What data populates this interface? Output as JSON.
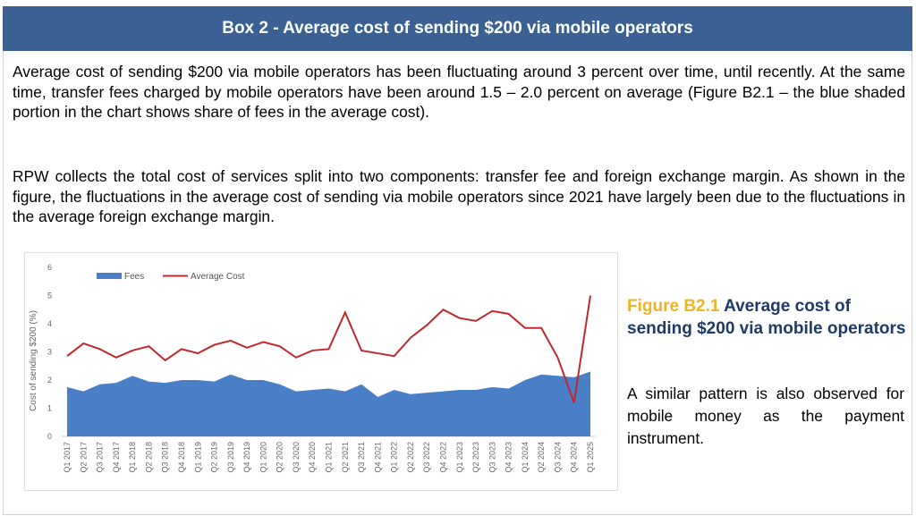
{
  "header": {
    "title": "Box 2 - Average cost of sending $200 via mobile operators"
  },
  "paragraphs": [
    "Average cost of sending $200 via mobile operators has been fluctuating around 3 percent over time, until recently. At the same time, transfer fees charged by mobile operators have been around 1.5 – 2.0 percent on average (Figure B2.1 – the blue shaded portion in the chart shows share of fees in the average cost).",
    "RPW collects the total cost of services split into two components: transfer fee and foreign exchange margin. As shown in the figure, the fluctuations in the average cost of sending via mobile operators since 2021 have largely been due to the fluctuations in the average foreign exchange margin."
  ],
  "figure": {
    "number": "Figure B2.1",
    "title": "Average cost of sending $200 via mobile operators",
    "note": "A similar pattern is also observed for mobile money as the payment instrument."
  },
  "chart_data": {
    "type": "area",
    "title": "",
    "xlabel": "",
    "ylabel": "Cost of sending $200 (%)",
    "ylim": [
      0,
      6
    ],
    "yticks": [
      "0",
      "1",
      "2",
      "3",
      "4",
      "5",
      "6"
    ],
    "grid": false,
    "legend_position": "top-left",
    "categories": [
      "Q1 2017",
      "Q2 2017",
      "Q3 2017",
      "Q4 2017",
      "Q1 2018",
      "Q2 2018",
      "Q3 2018",
      "Q4 2018",
      "Q1 2019",
      "Q2 2019",
      "Q3 2019",
      "Q4 2019",
      "Q1 2020",
      "Q2 2020",
      "Q3 2020",
      "Q4 2020",
      "Q1 2021",
      "Q2 2021",
      "Q3 2021",
      "Q4 2021",
      "Q1 2022",
      "Q2 2022",
      "Q3 2022",
      "Q4 2022",
      "Q1 2023",
      "Q2 2023",
      "Q3 2023",
      "Q4 2023",
      "Q1 2024",
      "Q2 2024",
      "Q3 2024",
      "Q4 2024",
      "Q1 2025"
    ],
    "series": [
      {
        "name": "Fees",
        "kind": "area",
        "color": "#4a7ec6",
        "values": [
          1.75,
          1.6,
          1.85,
          1.9,
          2.15,
          1.95,
          1.9,
          2.0,
          2.0,
          1.95,
          2.2,
          2.0,
          2.0,
          1.85,
          1.6,
          1.65,
          1.7,
          1.6,
          1.85,
          1.4,
          1.65,
          1.5,
          1.55,
          1.6,
          1.65,
          1.65,
          1.75,
          1.7,
          2.0,
          2.2,
          2.15,
          2.1,
          2.3
        ]
      },
      {
        "name": "Average Cost",
        "kind": "line",
        "color": "#c0282d",
        "values": [
          2.85,
          3.3,
          3.1,
          2.8,
          3.05,
          3.2,
          2.7,
          3.1,
          2.95,
          3.25,
          3.4,
          3.15,
          3.35,
          3.2,
          2.8,
          3.05,
          3.1,
          4.4,
          3.05,
          2.95,
          2.85,
          3.5,
          3.95,
          4.5,
          4.2,
          4.1,
          4.45,
          4.35,
          3.85,
          3.85,
          2.8,
          1.2,
          5.0
        ]
      }
    ]
  }
}
